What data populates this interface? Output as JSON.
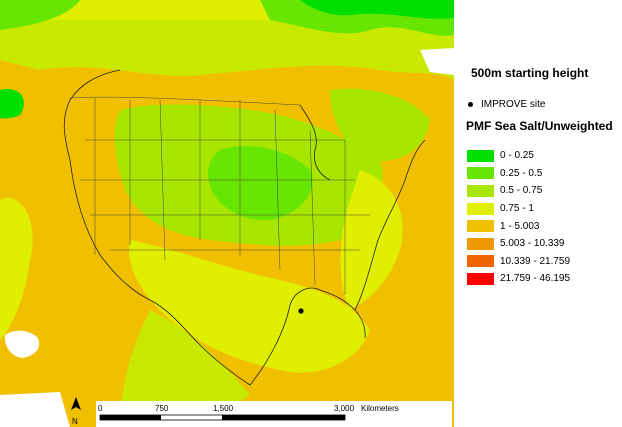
{
  "map": {
    "title": "500m starting height",
    "site_legend_label": "IMPROVE site",
    "legend_title": "PMF Sea Salt/Unweighted",
    "legend_classes": [
      {
        "label": "0 - 0.25",
        "color": "#00e000"
      },
      {
        "label": "0.25 - 0.5",
        "color": "#66e600"
      },
      {
        "label": "0.5 - 0.75",
        "color": "#a8e600"
      },
      {
        "label": "0.75 - 1",
        "color": "#e0ee00"
      },
      {
        "label": "1 - 5.003",
        "color": "#f0c000"
      },
      {
        "label": "5.003 - 10.339",
        "color": "#f09800"
      },
      {
        "label": "10.339 - 21.759",
        "color": "#f06400"
      },
      {
        "label": "21.759 - 46.195",
        "color": "#ff0000"
      }
    ],
    "scale_bar": {
      "ticks": [
        "0",
        "750",
        "1,500",
        "3,000"
      ],
      "unit": "Kilometers"
    },
    "north_label": "N"
  }
}
